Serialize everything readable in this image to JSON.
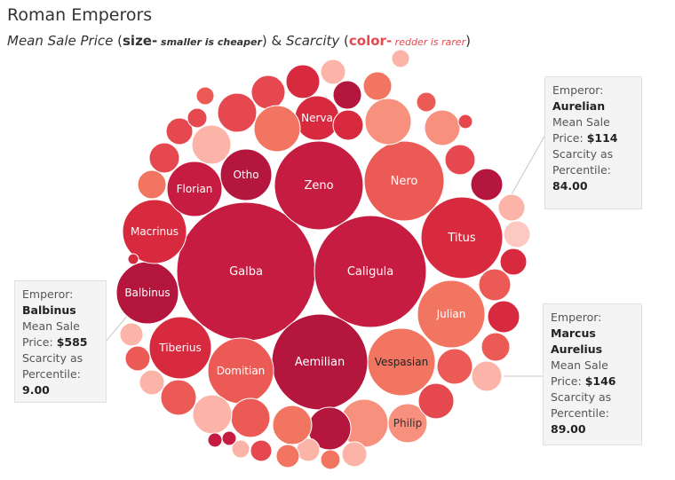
{
  "title": "Roman Emperors",
  "subtitle": {
    "part1": "Mean Sale Price",
    "part2": " (",
    "part3": "size-",
    "part4": " smaller is cheaper",
    "part5": ") & ",
    "part6": "Scarcity",
    "part7": " (",
    "part8": "color-",
    "part9": " redder is rarer",
    "part10": ")"
  },
  "tooltips": [
    {
      "l1": "Emperor:",
      "name": "Aurelian",
      "l3": "Mean Sale",
      "price_label": "Price:",
      "price": "$114",
      "l5": "Scarcity as",
      "l6": "Percentile:",
      "pct": "84.00"
    },
    {
      "l1": "Emperor:",
      "name": "Balbinus",
      "l3": "Mean Sale",
      "price_label": "Price:",
      "price": "$585",
      "l5": "Scarcity as",
      "l6": "Percentile:",
      "pct": "9.00"
    },
    {
      "l1": "Emperor:",
      "name": "Marcus Aurelius",
      "name_a": "Marcus",
      "name_b": "Aurelius",
      "l3": "Mean Sale",
      "price_label": "Price:",
      "price": "$146",
      "l5": "Scarcity as",
      "l6": "Percentile:",
      "pct": "89.00"
    }
  ],
  "chart_data": {
    "type": "packed-bubble",
    "size_measure": "Mean Sale Price",
    "color_measure": "Scarcity as Percentile",
    "labeled_bubbles": [
      "Galba",
      "Caligula",
      "Aemilian",
      "Zeno",
      "Nero",
      "Titus",
      "Julian",
      "Vespasian",
      "Domitian",
      "Tiberius",
      "Balbinus",
      "Macrinus",
      "Florian",
      "Otho",
      "Nerva",
      "Philip"
    ],
    "highlighted": [
      {
        "emperor": "Aurelian",
        "mean_sale_price": 114,
        "scarcity_percentile": 84.0
      },
      {
        "emperor": "Balbinus",
        "mean_sale_price": 585,
        "scarcity_percentile": 9.0
      },
      {
        "emperor": "Marcus Aurelius",
        "mean_sale_price": 146,
        "scarcity_percentile": 89.0
      }
    ],
    "colors": {
      "rare": "#b5163d",
      "common": "#fcb4a8",
      "mid": "#ec5a55"
    }
  }
}
